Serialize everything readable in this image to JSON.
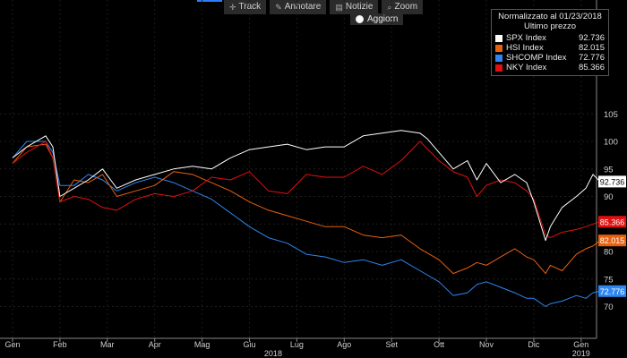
{
  "toolbar": {
    "track_label": "Track",
    "annotate_label": "Annotare",
    "news_label": "Notizie",
    "zoom_label": "Zoom",
    "refresh_label": "Aggiorn"
  },
  "legend": {
    "title": "Normalizzato al 01/23/2018",
    "subtitle": "Ultimo prezzo",
    "items": [
      {
        "name": "SPX Index",
        "value": "92.736",
        "color": "#ffffff"
      },
      {
        "name": "HSI Index",
        "value": "82.015",
        "color": "#e8610f"
      },
      {
        "name": "SHCOMP Index",
        "value": "72.776",
        "color": "#2e86f0"
      },
      {
        "name": "NKY Index",
        "value": "85.366",
        "color": "#e01010"
      }
    ]
  },
  "chart_data": {
    "type": "line",
    "ylim": [
      66,
      106
    ],
    "yticks": [
      70,
      75,
      80,
      85,
      90,
      95,
      100,
      105
    ],
    "xlim": [
      0,
      12.6
    ],
    "month_labels": [
      {
        "label": "Gen",
        "x": 0
      },
      {
        "label": "Feb",
        "x": 1
      },
      {
        "label": "Mar",
        "x": 2
      },
      {
        "label": "Apr",
        "x": 3
      },
      {
        "label": "Mag",
        "x": 4
      },
      {
        "label": "Giu",
        "x": 5
      },
      {
        "label": "Lug",
        "x": 6
      },
      {
        "label": "Ago",
        "x": 7
      },
      {
        "label": "Set",
        "x": 8
      },
      {
        "label": "Ott",
        "x": 9
      },
      {
        "label": "Nov",
        "x": 10
      },
      {
        "label": "Dic",
        "x": 11
      },
      {
        "label": "Gen",
        "x": 12
      }
    ],
    "year_labels": [
      {
        "label": "2018",
        "x": 5.5
      },
      {
        "label": "2019",
        "x": 12
      }
    ],
    "series": [
      {
        "name": "SPX Index",
        "color": "#ffffff",
        "last_value": "92.736",
        "x": [
          0,
          0.3,
          0.7,
          0.85,
          1,
          1.3,
          1.6,
          1.9,
          2.2,
          2.6,
          3,
          3.4,
          3.8,
          4.2,
          4.6,
          5,
          5.4,
          5.8,
          6.2,
          6.6,
          7,
          7.4,
          7.8,
          8.2,
          8.6,
          8.75,
          9,
          9.3,
          9.6,
          9.8,
          10,
          10.3,
          10.6,
          10.85,
          11,
          11.25,
          11.35,
          11.6,
          11.9,
          12.1,
          12.25,
          12.4
        ],
        "y": [
          97,
          99,
          101,
          99,
          90,
          91.5,
          93,
          95,
          91.5,
          93,
          94,
          95,
          95.5,
          95,
          97,
          98.5,
          99,
          99.5,
          98.5,
          99,
          99,
          101,
          101.5,
          102,
          101.5,
          100.5,
          98,
          95,
          96.5,
          93,
          96,
          92.5,
          94,
          92.5,
          89,
          82,
          84.5,
          88,
          90,
          91.5,
          94,
          92.7
        ]
      },
      {
        "name": "HSI Index",
        "color": "#e8610f",
        "last_value": "82.015",
        "x": [
          0,
          0.3,
          0.7,
          0.85,
          1,
          1.3,
          1.6,
          1.9,
          2.2,
          2.6,
          3,
          3.4,
          3.8,
          4.2,
          4.6,
          5,
          5.4,
          5.8,
          6.2,
          6.6,
          7,
          7.4,
          7.8,
          8.2,
          8.6,
          9,
          9.3,
          9.6,
          9.8,
          10,
          10.3,
          10.6,
          10.85,
          11,
          11.25,
          11.35,
          11.6,
          11.9,
          12.1,
          12.25,
          12.4
        ],
        "y": [
          96,
          99,
          99.5,
          97,
          89,
          93,
          92.5,
          94,
          90,
          91,
          92,
          94.5,
          94,
          92.5,
          91,
          89,
          87.5,
          86.5,
          85.5,
          84.5,
          84.5,
          83,
          82.5,
          83,
          80.5,
          78.5,
          76,
          77,
          78,
          77.5,
          79,
          80.5,
          79,
          78.5,
          76,
          77.5,
          76.5,
          79.5,
          80.5,
          81,
          82
        ]
      },
      {
        "name": "SHCOMP Index",
        "color": "#2e86f0",
        "last_value": "72.776",
        "x": [
          0,
          0.3,
          0.7,
          0.85,
          1,
          1.3,
          1.6,
          1.9,
          2.2,
          2.6,
          3,
          3.4,
          3.8,
          4.2,
          4.6,
          5,
          5.4,
          5.8,
          6.2,
          6.6,
          7,
          7.4,
          7.8,
          8.2,
          8.6,
          9,
          9.3,
          9.6,
          9.8,
          10,
          10.3,
          10.6,
          10.85,
          11,
          11.25,
          11.35,
          11.6,
          11.9,
          12.1,
          12.25,
          12.4
        ],
        "y": [
          97,
          100,
          100,
          98,
          92,
          92,
          94,
          93,
          91,
          92.5,
          93.5,
          92.5,
          91,
          89.5,
          87,
          84.5,
          82.5,
          81.5,
          79.5,
          79,
          78,
          78.5,
          77.5,
          78.5,
          76.5,
          74.5,
          72,
          72.5,
          74,
          74.5,
          73.5,
          72.5,
          71.5,
          71.5,
          70,
          70.5,
          71,
          72,
          71.5,
          72.5,
          72.8
        ]
      },
      {
        "name": "NKY Index",
        "color": "#e01010",
        "last_value": "85.366",
        "x": [
          0,
          0.3,
          0.7,
          0.85,
          1,
          1.3,
          1.6,
          1.9,
          2.2,
          2.6,
          3,
          3.4,
          3.8,
          4.2,
          4.6,
          5,
          5.4,
          5.8,
          6.2,
          6.6,
          7,
          7.4,
          7.8,
          8.2,
          8.6,
          9,
          9.3,
          9.6,
          9.8,
          10,
          10.3,
          10.6,
          10.85,
          11,
          11.25,
          11.35,
          11.6,
          11.9,
          12.1,
          12.25,
          12.4
        ],
        "y": [
          96,
          98,
          100,
          97,
          89,
          90,
          89.5,
          88,
          87.5,
          89.5,
          90.5,
          90,
          91,
          93.5,
          93,
          94.5,
          91,
          90.5,
          94,
          93.5,
          93.5,
          95.5,
          94,
          96.5,
          100,
          96.5,
          94.5,
          93.5,
          90,
          92,
          93,
          92.5,
          91,
          89.5,
          83,
          82.5,
          83.5,
          84,
          84.5,
          85,
          85.4
        ]
      }
    ]
  }
}
